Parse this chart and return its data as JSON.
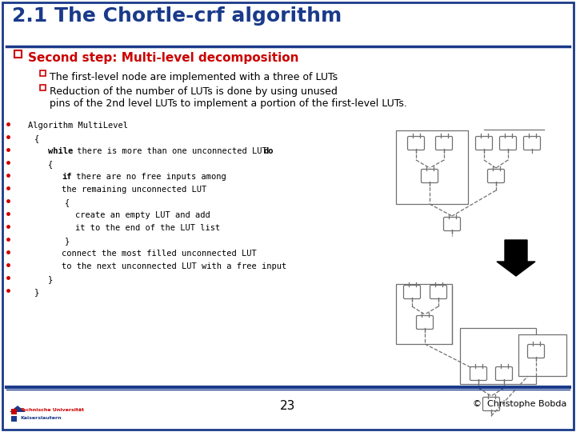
{
  "title": "2.1 The Chortle-crf algorithm",
  "title_color": "#1a3a8a",
  "bg_color": "#ffffff",
  "border_color": "#1a3a8a",
  "slide_num": "23",
  "copyright": "©  Christophe Bobda",
  "h1_text": "Second step: Multi-level decomposition",
  "h1_color": "#cc0000",
  "bullet1": "The first-level node are implemented with a three of LUTs",
  "bullet2a": "Reduction of the number of LUTs is done by using unused",
  "bullet2b": "pins of the 2nd level LUTs to implement a portion of the first-level LUTs.",
  "code_lines": [
    "    Algorithm MultiLevel",
    "      {",
    "          while there is more than one unconnected LUT do",
    "          {",
    "              if there are no free inputs among",
    "              the remaining unconnected LUT",
    "               {",
    "                  create an empty LUT and add",
    "                  it to the end of the LUT list",
    "               }",
    "              connect the most filled unconnected LUT",
    "              to the next unconnected LUT with a free input",
    "          }",
    "      }"
  ],
  "bullet_marker_color": "#cc0000",
  "text_color": "#000000",
  "code_color": "#000000",
  "footer_line_color": "#1a3a8a",
  "uni_text1": "Technische Universität",
  "uni_text2": "Kaiserslautern"
}
